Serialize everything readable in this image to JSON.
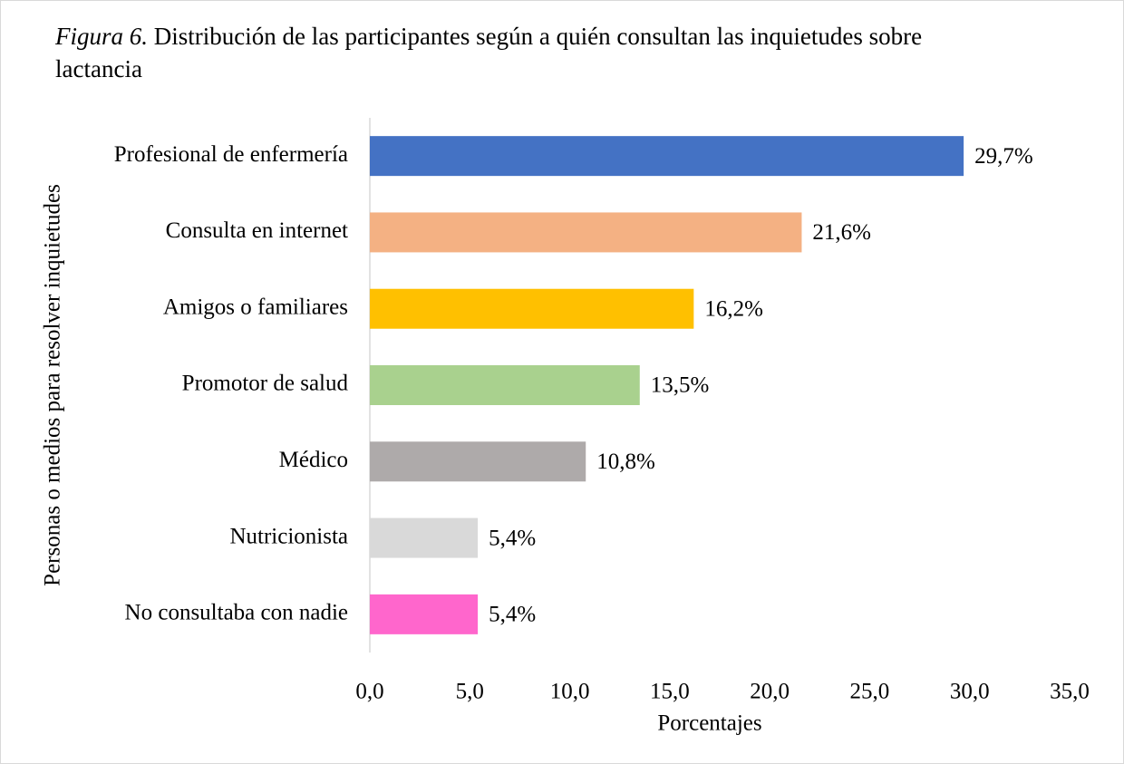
{
  "chart_data": {
    "type": "bar",
    "orientation": "horizontal",
    "title_label": "Figura 6.",
    "title": "Distribución de las participantes según a quién consultan las inquietudes sobre lactancia",
    "x_label": "Porcentajes",
    "y_label": "Personas o medios para resolver inquietudes",
    "categories": [
      "Profesional de enfermería",
      "Consulta en internet",
      "Amigos o familiares",
      "Promotor de salud",
      "Médico",
      "Nutricionista",
      "No consultaba con nadie"
    ],
    "values": [
      29.7,
      21.6,
      16.2,
      13.5,
      10.8,
      5.4,
      5.4
    ],
    "value_labels": [
      "29,7%",
      "21,6%",
      "16,2%",
      "13,5%",
      "10,8%",
      "5,4%",
      "5,4%"
    ],
    "colors": [
      "#4472c4",
      "#f4b183",
      "#ffc000",
      "#a9d18e",
      "#aeaaaa",
      "#d9d9d9",
      "#ff66cc"
    ],
    "xlim": [
      0,
      35
    ],
    "xticks": [
      {
        "value": 0,
        "label": "0,0"
      },
      {
        "value": 5,
        "label": "5,0"
      },
      {
        "value": 10,
        "label": "10,0"
      },
      {
        "value": 15,
        "label": "15,0"
      },
      {
        "value": 20,
        "label": "20,0"
      },
      {
        "value": 25,
        "label": "25,0"
      },
      {
        "value": 30,
        "label": "30,0"
      },
      {
        "value": 35,
        "label": "35,0"
      }
    ],
    "grid": false
  }
}
